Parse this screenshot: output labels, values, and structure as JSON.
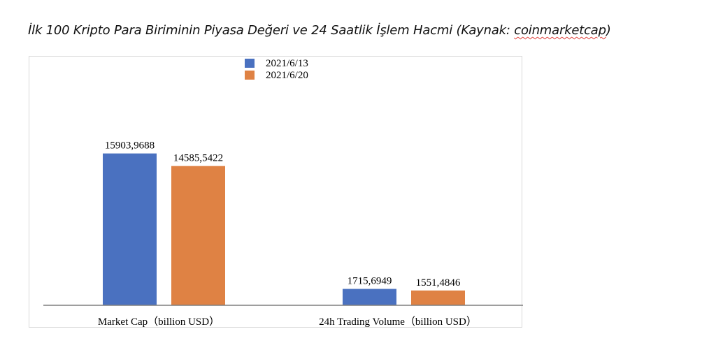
{
  "title": {
    "main": "İlk 100 Kripto Para Biriminin Piyasa Değeri ve 24 Saatlik İşlem Hacmi (Kaynak: ",
    "source": "coinmarketcap",
    "close": ")"
  },
  "chart_data": {
    "type": "bar",
    "categories": [
      "Market Cap（billion USD）",
      "24h Trading Volume（billion USD）"
    ],
    "series": [
      {
        "name": "2021/6/13",
        "values": [
          15903.9688,
          1715.6949
        ],
        "labels": [
          "15903,9688",
          "1715,6949"
        ],
        "color": "#4a71c0"
      },
      {
        "name": "2021/6/20",
        "values": [
          14585.5422,
          1551.4846
        ],
        "labels": [
          "14585,5422",
          "1551,4846"
        ],
        "color": "#df8244"
      }
    ],
    "ylim": [
      0,
      18000
    ],
    "legend_position": "top-center",
    "grid": false
  }
}
